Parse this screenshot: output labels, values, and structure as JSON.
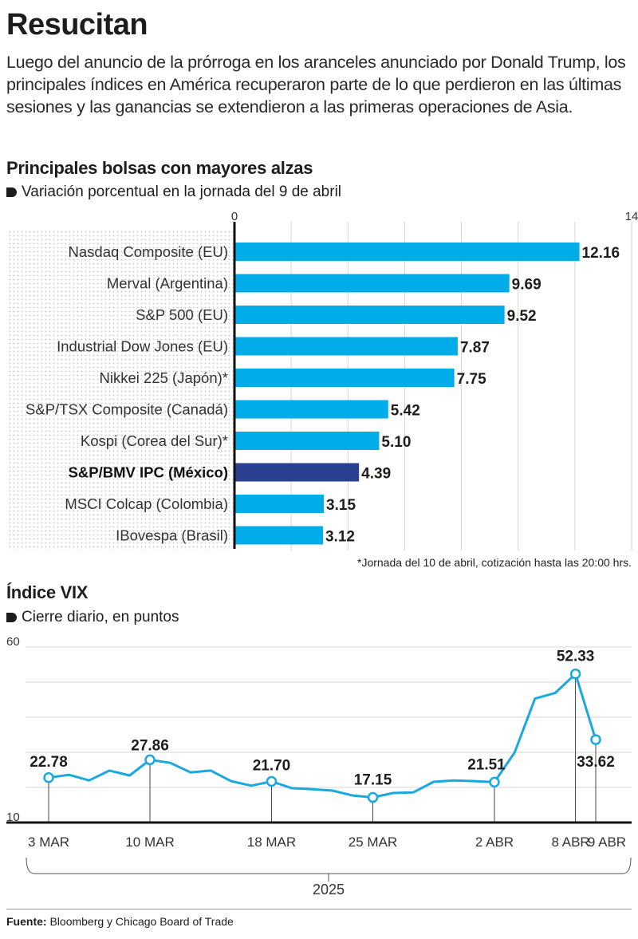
{
  "header": {
    "title": "Resucitan",
    "intro": "Luego del anuncio de la prórroga en los aranceles anunciado por Donald Trump, los principales índices en América recuperaron parte de lo que perdieron en las últimas sesiones y las ganancias se extendieron a las primeras operaciones de Asia."
  },
  "footer": {
    "source_label": "Fuente:",
    "source_text": "Bloomberg y Chicago Board of Trade"
  },
  "colors": {
    "bar": "#00ADE8",
    "bar_highlight": "#283F92",
    "line": "#1BA8E0",
    "grid": "#d6d6d6",
    "text": "#1d1d1b"
  },
  "chart_data": [
    {
      "type": "bar",
      "orientation": "horizontal",
      "title": "Principales bolsas con mayores alzas",
      "subtitle": "Variación porcentual en la jornada del 9 de abril",
      "categories": [
        "Nasdaq Composite (EU)",
        "Merval (Argentina)",
        "S&P 500 (EU)",
        "Industrial Dow Jones (EU)",
        "Nikkei 225 (Japón)*",
        "S&P/TSX Composite (Canadá)",
        "Kospi (Corea del Sur)*",
        "S&P/BMV IPC (México)",
        "MSCI Colcap (Colombia)",
        "IBovespa (Brasil)"
      ],
      "values": [
        12.16,
        9.69,
        9.52,
        7.87,
        7.75,
        5.42,
        5.1,
        4.39,
        3.15,
        3.12
      ],
      "value_labels": [
        "12.16",
        "9.69",
        "9.52",
        "7.87",
        "7.75",
        "5.42",
        "5.10",
        "4.39",
        "3.15",
        "3.12"
      ],
      "highlight": "S&P/BMV IPC (México)",
      "xlim": [
        0,
        14
      ],
      "xticks": [
        0,
        2,
        4,
        6,
        8,
        10,
        12,
        14
      ],
      "xtick_labels_shown": [
        "0",
        "14"
      ],
      "grid": true,
      "footnote": "*Jornada del 10 de abril, cotización hasta las 20:00 hrs."
    },
    {
      "type": "line",
      "title": "Índice VIX",
      "subtitle": "Cierre diario, en puntos",
      "x": [
        "3 MAR",
        "4 MAR",
        "5 MAR",
        "6 MAR",
        "7 MAR",
        "10 MAR",
        "11 MAR",
        "12 MAR",
        "13 MAR",
        "14 MAR",
        "17 MAR",
        "18 MAR",
        "19 MAR",
        "20 MAR",
        "21 MAR",
        "24 MAR",
        "25 MAR",
        "26 MAR",
        "27 MAR",
        "28 MAR",
        "31 MAR",
        "1 ABR",
        "2 ABR",
        "3 ABR",
        "4 ABR",
        "7 ABR",
        "8 ABR",
        "9 ABR"
      ],
      "values": [
        22.78,
        23.6,
        22.0,
        24.8,
        23.4,
        27.86,
        27.0,
        24.3,
        24.8,
        21.8,
        20.5,
        21.7,
        19.8,
        19.5,
        19.1,
        17.7,
        17.15,
        18.4,
        18.6,
        21.6,
        22.0,
        21.8,
        21.51,
        30.0,
        45.3,
        46.9,
        52.33,
        33.62
      ],
      "annotated": [
        {
          "index": 0,
          "label": "22.78"
        },
        {
          "index": 5,
          "label": "27.86"
        },
        {
          "index": 11,
          "label": "21.70"
        },
        {
          "index": 16,
          "label": "17.15"
        },
        {
          "index": 22,
          "label": "21.51"
        },
        {
          "index": 26,
          "label": "52.33"
        },
        {
          "index": 27,
          "label": "33.62"
        }
      ],
      "xtick_labels": [
        {
          "index": 0,
          "label": "3 MAR"
        },
        {
          "index": 5,
          "label": "10 MAR"
        },
        {
          "index": 11,
          "label": "18 MAR"
        },
        {
          "index": 16,
          "label": "25 MAR"
        },
        {
          "index": 22,
          "label": "2 ABR"
        },
        {
          "index": 26,
          "label": "8 ABR"
        },
        {
          "index": 27,
          "label": "9 ABR"
        }
      ],
      "year_label": "2025",
      "ylim": [
        10,
        60
      ],
      "ygrid": [
        10,
        20,
        30,
        40,
        50,
        60
      ],
      "ytick_labels_shown": [
        "10",
        "60"
      ],
      "grid": true
    }
  ]
}
